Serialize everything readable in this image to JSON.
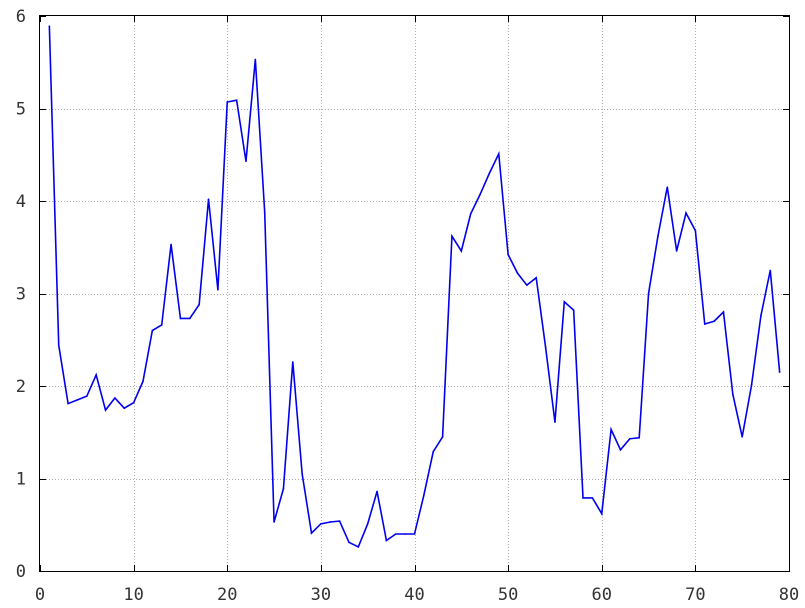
{
  "chart_data": {
    "type": "line",
    "title": "",
    "xlabel": "",
    "ylabel": "",
    "xlim": [
      0,
      80
    ],
    "ylim": [
      0,
      6
    ],
    "xticks": [
      0,
      10,
      20,
      30,
      40,
      50,
      60,
      70,
      80
    ],
    "yticks": [
      0,
      1,
      2,
      3,
      4,
      5,
      6
    ],
    "grid": true,
    "series_color": "#0000ee",
    "series": [
      {
        "x": [
          1,
          2,
          3,
          4,
          5,
          6,
          7,
          8,
          9,
          10,
          11,
          12,
          13,
          14,
          15,
          16,
          17,
          18,
          19,
          20,
          21,
          22,
          23,
          24,
          25,
          26,
          27,
          28,
          29,
          30,
          31,
          32,
          33,
          34,
          35,
          36,
          37,
          38,
          39,
          40,
          41,
          42,
          43,
          44,
          45,
          46,
          47,
          48,
          49,
          50,
          51,
          52,
          53,
          54,
          55,
          56,
          57,
          58,
          59,
          60,
          61,
          62,
          63,
          64,
          65,
          66,
          67,
          68,
          69,
          70,
          71,
          72,
          73,
          74,
          75,
          76,
          77,
          78,
          79
        ],
        "values": [
          5.89,
          2.44,
          1.81,
          1.85,
          1.89,
          2.12,
          1.74,
          1.87,
          1.76,
          1.82,
          2.05,
          2.6,
          2.66,
          3.53,
          2.73,
          2.73,
          2.88,
          4.02,
          3.04,
          5.07,
          5.09,
          4.43,
          5.53,
          3.88,
          0.53,
          0.89,
          2.26,
          1.05,
          0.41,
          0.51,
          0.53,
          0.54,
          0.31,
          0.26,
          0.51,
          0.86,
          0.33,
          0.4,
          0.4,
          0.4,
          0.82,
          1.29,
          1.45,
          3.62,
          3.46,
          3.86,
          4.07,
          4.3,
          4.51,
          3.42,
          3.22,
          3.09,
          3.17,
          2.42,
          1.61,
          2.91,
          2.82,
          0.79,
          0.79,
          0.62,
          1.53,
          1.31,
          1.43,
          1.44,
          3.0,
          3.62,
          4.15,
          3.46,
          3.87,
          3.68,
          2.67,
          2.7,
          2.8,
          1.91,
          1.45,
          2.01,
          2.76,
          3.25,
          2.15
        ]
      }
    ]
  }
}
